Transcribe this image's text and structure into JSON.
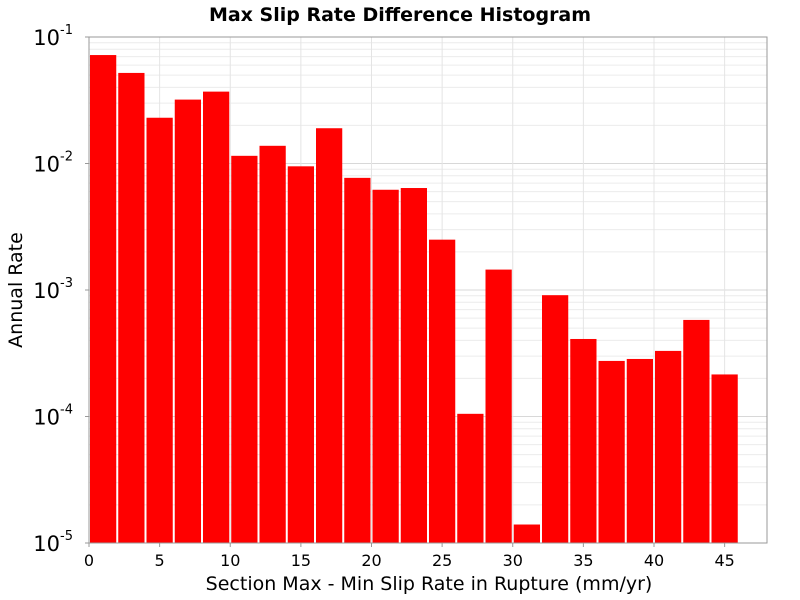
{
  "chart_data": {
    "type": "bar",
    "title": "Max Slip Rate Difference Histogram",
    "xlabel": "Section Max - Min Slip Rate in Rupture (mm/yr)",
    "ylabel": "Annual Rate",
    "xlim": [
      0,
      48
    ],
    "ylim": [
      1e-05,
      0.1
    ],
    "yscale": "log",
    "grid": true,
    "bar_color": "#ff0000",
    "bin_width": 2,
    "x_ticks": [
      "0",
      "5",
      "10",
      "15",
      "20",
      "25",
      "30",
      "35",
      "40",
      "45"
    ],
    "y_ticks": [
      {
        "base": "10",
        "exp": "-5"
      },
      {
        "base": "10",
        "exp": "-4"
      },
      {
        "base": "10",
        "exp": "-3"
      },
      {
        "base": "10",
        "exp": "-2"
      },
      {
        "base": "10",
        "exp": "-1"
      }
    ],
    "x": [
      1,
      3,
      5,
      7,
      9,
      11,
      13,
      15,
      17,
      19,
      21,
      23,
      25,
      27,
      29,
      31,
      33,
      35,
      37,
      39,
      41,
      43,
      45
    ],
    "values": [
      0.072,
      0.052,
      0.023,
      0.032,
      0.037,
      0.0115,
      0.0138,
      0.0095,
      0.019,
      0.0077,
      0.0062,
      0.0064,
      0.0025,
      0.000105,
      0.00145,
      1.4e-05,
      0.00091,
      0.00041,
      0.000275,
      0.000285,
      0.00033,
      0.00058,
      0.000215
    ]
  }
}
